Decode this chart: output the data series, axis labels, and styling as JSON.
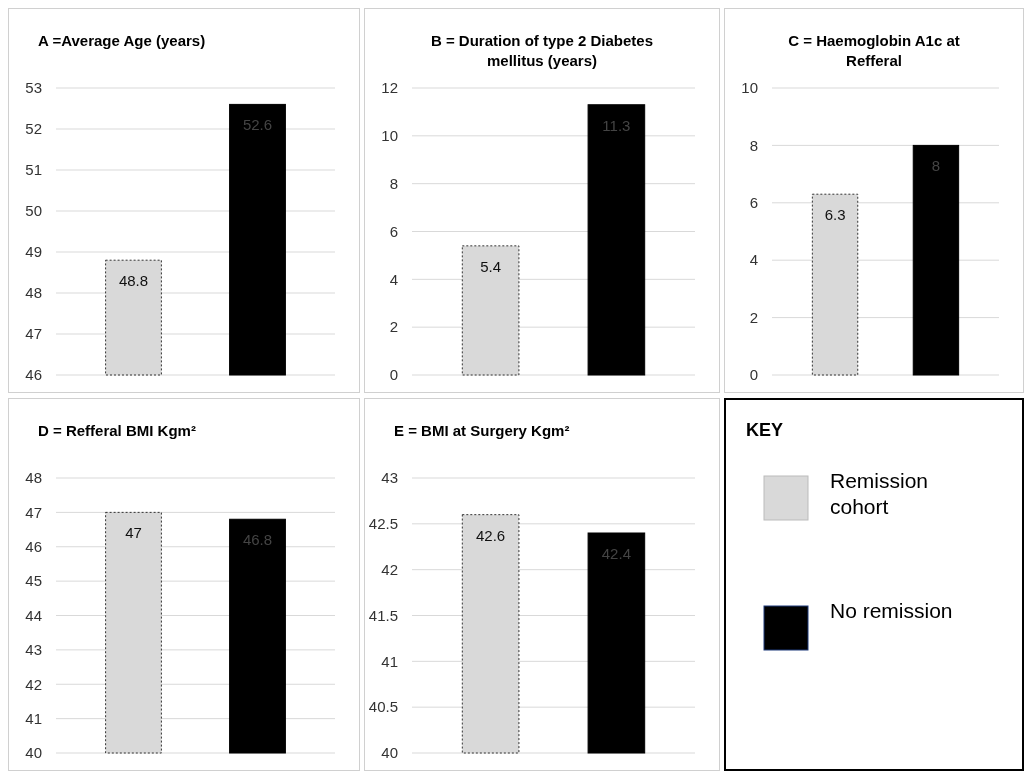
{
  "chart_data": [
    {
      "type": "bar",
      "title": "A =Average Age (years)",
      "categories": [
        null,
        null
      ],
      "values": [
        48.8,
        52.6
      ],
      "colors": [
        "#d9d9d9",
        "#000000"
      ],
      "ylim": [
        46,
        53
      ],
      "yticks": [
        46,
        47,
        48,
        49,
        50,
        51,
        52,
        53
      ],
      "grid": "y",
      "data_labels": true
    },
    {
      "type": "bar",
      "title": "B = Duration of type 2 Diabetes mellitus (years)",
      "categories": [
        null,
        null
      ],
      "values": [
        5.4,
        11.3
      ],
      "colors": [
        "#d9d9d9",
        "#000000"
      ],
      "ylim": [
        0,
        12
      ],
      "yticks": [
        0,
        2,
        4,
        6,
        8,
        10,
        12
      ],
      "grid": "y",
      "data_labels": true
    },
    {
      "type": "bar",
      "title": "C = Haemoglobin A1c at Refferal",
      "categories": [
        null,
        null
      ],
      "values": [
        6.3,
        8
      ],
      "colors": [
        "#d9d9d9",
        "#000000"
      ],
      "ylim": [
        0,
        10
      ],
      "yticks": [
        0,
        2,
        4,
        6,
        8,
        10
      ],
      "grid": "y",
      "data_labels": true
    },
    {
      "type": "bar",
      "title": "D = Refferal BMI Kgm²",
      "categories": [
        null,
        null
      ],
      "values": [
        47,
        46.8
      ],
      "colors": [
        "#d9d9d9",
        "#000000"
      ],
      "ylim": [
        40,
        48
      ],
      "yticks": [
        40,
        41,
        42,
        43,
        44,
        45,
        46,
        47,
        48
      ],
      "grid": "y",
      "data_labels": true
    },
    {
      "type": "bar",
      "title": "E = BMI at Surgery Kgm²",
      "categories": [
        null,
        null
      ],
      "values": [
        42.6,
        42.4
      ],
      "colors": [
        "#d9d9d9",
        "#000000"
      ],
      "ylim": [
        40,
        43
      ],
      "yticks": [
        40,
        40.5,
        41,
        41.5,
        42,
        42.5,
        43
      ],
      "grid": "y",
      "data_labels": true
    },
    {
      "type": "other",
      "title": "KEY",
      "categories": [
        "Remission cohort",
        "No remission"
      ],
      "colors": [
        "#d9d9d9",
        "#000000"
      ]
    }
  ]
}
